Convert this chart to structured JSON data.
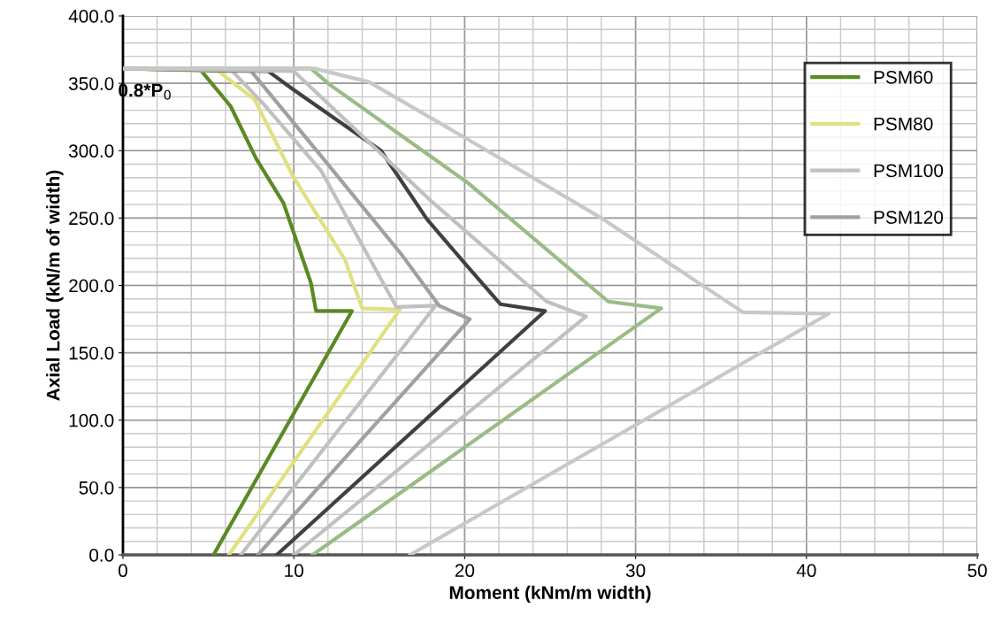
{
  "chart_data": {
    "type": "line",
    "xlabel": "Moment (kNm/m width)",
    "ylabel": "Axial Load (kN/m of width)",
    "xlim": [
      0,
      50
    ],
    "xticks": [
      0,
      10,
      20,
      30,
      40,
      50
    ],
    "ylim": [
      0,
      400
    ],
    "yticks": [
      {
        "value": 0,
        "label": "0.0"
      },
      {
        "value": 50,
        "label": "50.0"
      },
      {
        "value": 100,
        "label": "100.0"
      },
      {
        "value": 150,
        "label": "150.0"
      },
      {
        "value": 200,
        "label": "200.0"
      },
      {
        "value": 250,
        "label": "250.0"
      },
      {
        "value": 300,
        "label": "300.0"
      },
      {
        "value": 350,
        "label": "350.0"
      },
      {
        "value": 400,
        "label": "400.0"
      }
    ],
    "grid": true,
    "legend": "top right",
    "marker": "none",
    "line_style": "solid",
    "annotations": [
      {
        "text": "0.8*P$_{0}$",
        "x": 0,
        "y": 361
      }
    ],
    "series": [
      {
        "name": "PSM60",
        "color": "#5a8a22",
        "x": [
          5.3,
          13.4,
          11.3,
          11.0,
          9.4,
          7.8,
          6.3,
          4.6
        ],
        "values": [
          0,
          181,
          181,
          202,
          261,
          294,
          333,
          359
        ]
      },
      {
        "name": "PSM80",
        "color": "#e0e080",
        "x": [
          6.2,
          16.2,
          14.0,
          13.0,
          10.0,
          7.7,
          5.6,
          0
        ],
        "values": [
          0,
          182,
          183,
          219,
          280,
          338,
          359,
          361
        ]
      },
      {
        "name": "PSM100",
        "color": "#c0c0c0",
        "x": [
          6.9,
          18.3,
          16.0,
          11.6,
          8.2,
          6.4,
          0
        ],
        "values": [
          0,
          185,
          184,
          285,
          335,
          359,
          361
        ]
      },
      {
        "name": "PSM120",
        "color": "#a0a0a0",
        "x": [
          7.9,
          20.3,
          18.5,
          16.3,
          11.6,
          7.5,
          0
        ],
        "values": [
          0,
          175,
          185,
          223,
          296,
          359,
          361
        ]
      },
      {
        "color": "#404040",
        "x": [
          9.0,
          24.7,
          22.1,
          20.1,
          17.8,
          15.1,
          9.9,
          8.5,
          0
        ],
        "values": [
          0,
          181,
          186,
          215,
          249,
          300,
          346,
          359,
          361
        ]
      },
      {
        "color": "#c0c0c0",
        "x": [
          10.0,
          27.1,
          24.8,
          18.0,
          10.0,
          0
        ],
        "values": [
          0,
          177,
          188,
          263,
          359,
          361
        ]
      },
      {
        "color": "#9bbb85",
        "x": [
          11.1,
          31.5,
          28.4,
          20.2,
          12.1,
          11.0,
          0
        ],
        "values": [
          0,
          183,
          188,
          276,
          349,
          361,
          361
        ]
      },
      {
        "color": "#c8c8c8",
        "x": [
          16.8,
          41.3,
          36.3,
          33.2,
          28.0,
          20.1,
          14.4,
          11.2,
          0
        ],
        "values": [
          0,
          179,
          180,
          206,
          250,
          309,
          351,
          361,
          361
        ]
      }
    ]
  }
}
